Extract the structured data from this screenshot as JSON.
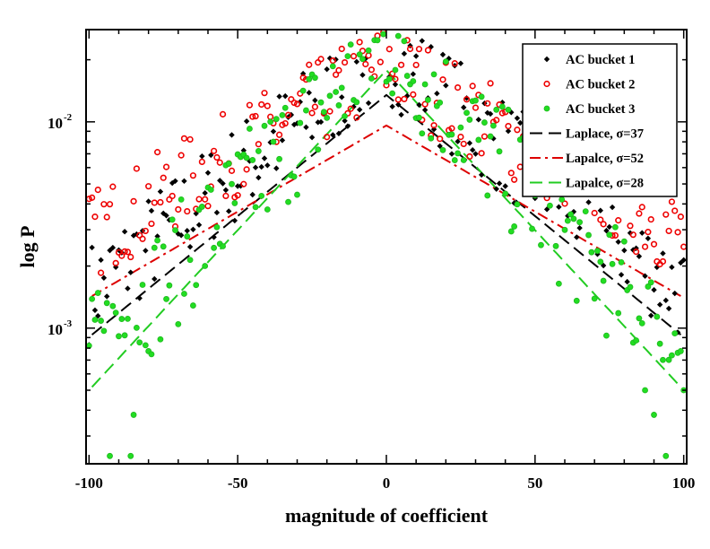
{
  "chart_data": {
    "type": "scatter",
    "title": "",
    "xlabel": "magnitude of coefficient",
    "ylabel": "log P",
    "xlim": [
      -101,
      101
    ],
    "ylim": [
      0.00022,
      0.028
    ],
    "yscale": "log",
    "xticks": [
      -100,
      -50,
      0,
      50,
      100
    ],
    "xtick_labels": [
      "-100",
      "-50",
      "0",
      "50",
      "100"
    ],
    "yticks": [
      0.001,
      0.01
    ],
    "ytick_labels": [
      {
        "base": "10",
        "exp": "-3"
      },
      {
        "base": "10",
        "exp": "-2"
      }
    ],
    "legend_position": "top-right",
    "series": [
      {
        "name": "AC bucket 1",
        "kind": "scatter",
        "marker": "diamond",
        "color": "#000000",
        "sigma": 37,
        "peak": 0.022,
        "scatter_spread": 0.25
      },
      {
        "name": "AC bucket 2",
        "kind": "scatter",
        "marker": "circle",
        "color": "#ee0000",
        "sigma": 52,
        "peak": 0.019,
        "scatter_spread": 0.22
      },
      {
        "name": "AC bucket 3",
        "kind": "scatter",
        "marker": "circle-filled",
        "color": "#22dd22",
        "sigma": 28,
        "peak": 0.025,
        "scatter_spread": 0.3
      },
      {
        "name": "Laplace, σ=37",
        "kind": "line",
        "color": "#000000",
        "dash": "long",
        "peak": 0.0135,
        "scale": 37
      },
      {
        "name": "Lapalce, σ=52",
        "kind": "line",
        "color": "#dd0000",
        "dash": "dashdot",
        "peak": 0.0096,
        "scale": 52
      },
      {
        "name": "Lapalce, σ=28",
        "kind": "line",
        "color": "#22cc22",
        "dash": "long",
        "peak": 0.0178,
        "scale": 28
      }
    ]
  }
}
